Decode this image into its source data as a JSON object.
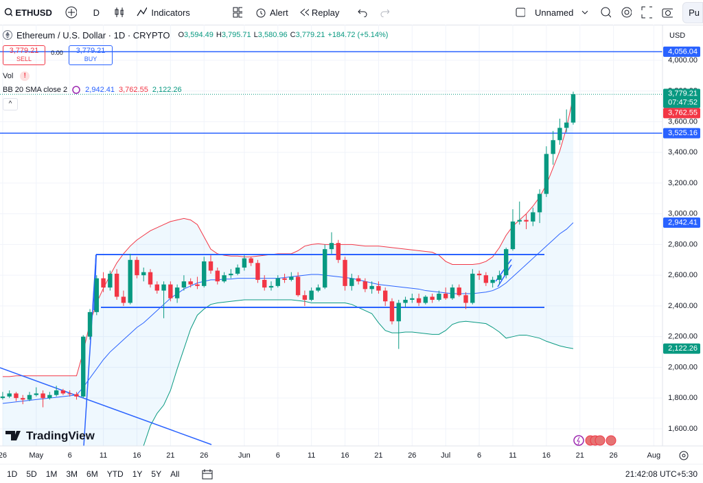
{
  "toolbar": {
    "symbol": "ETHUSD",
    "interval": "D",
    "indicators": "Indicators",
    "alert": "Alert",
    "replay": "Replay",
    "layout": "Unnamed",
    "publish": "Pu"
  },
  "legend": {
    "title": "Ethereum / U.S. Dollar · 1D · CRYPTO",
    "ohlc": [
      {
        "key": "O",
        "value": "3,594.49"
      },
      {
        "key": "H",
        "value": "3,795.71"
      },
      {
        "key": "L",
        "value": "3,580.96"
      },
      {
        "key": "C",
        "value": "3,779.21"
      }
    ],
    "change": "+184.72 (+5.14%)",
    "sell": {
      "price": "3,779.21",
      "label": "SELL"
    },
    "spread": "0.00",
    "buy": {
      "price": "3,779.21",
      "label": "BUY"
    },
    "vol": "Vol",
    "bb": {
      "label": "BB 20 SMA close 2",
      "values": [
        "2,942.41",
        "3,762.55",
        "2,122.26"
      ]
    }
  },
  "currency": "USD",
  "watermark": "TradingView",
  "bottom_bar": {
    "ranges": [
      "1D",
      "5D",
      "1M",
      "3M",
      "6M",
      "YTD",
      "1Y",
      "5Y",
      "All"
    ],
    "clock": "21:42:08 UTC+5:30"
  },
  "chart_data": {
    "type": "candlestick",
    "up_color": "#089981",
    "down_color": "#f23645",
    "xlim": [
      -0.4,
      98.3
    ],
    "ylim": [
      1488,
      4232
    ],
    "xticks": [
      {
        "value": 0,
        "label": "26"
      },
      {
        "value": 5,
        "label": "May"
      },
      {
        "value": 10,
        "label": "6"
      },
      {
        "value": 15,
        "label": "11"
      },
      {
        "value": 20,
        "label": "16"
      },
      {
        "value": 25,
        "label": "21"
      },
      {
        "value": 30,
        "label": "26"
      },
      {
        "value": 36,
        "label": "Jun"
      },
      {
        "value": 41,
        "label": "6"
      },
      {
        "value": 46,
        "label": "11"
      },
      {
        "value": 51,
        "label": "16"
      },
      {
        "value": 56,
        "label": "21"
      },
      {
        "value": 61,
        "label": "26"
      },
      {
        "value": 66,
        "label": "Jul"
      },
      {
        "value": 71,
        "label": "6"
      },
      {
        "value": 76,
        "label": "11"
      },
      {
        "value": 81,
        "label": "16"
      },
      {
        "value": 86,
        "label": "21"
      },
      {
        "value": 91,
        "label": "26"
      },
      {
        "value": 97,
        "label": "Aug"
      }
    ],
    "yticks": [
      {
        "value": 1600,
        "label": "1,600.00"
      },
      {
        "value": 1800,
        "label": "1,800.00"
      },
      {
        "value": 2000,
        "label": "2,000.00"
      },
      {
        "value": 2200,
        "label": "2,200.00"
      },
      {
        "value": 2400,
        "label": "2,400.00"
      },
      {
        "value": 2600,
        "label": "2,600.00"
      },
      {
        "value": 2800,
        "label": "2,800.00"
      },
      {
        "value": 3000,
        "label": "3,000.00"
      },
      {
        "value": 3200,
        "label": "3,200.00"
      },
      {
        "value": 3400,
        "label": "3,400.00"
      },
      {
        "value": 3600,
        "label": "3,600.00"
      },
      {
        "value": 3800,
        "label": "3,800.00"
      },
      {
        "value": 4000,
        "label": "4,000.00"
      }
    ],
    "candles": [
      [
        1800,
        1840,
        1790,
        1810
      ],
      [
        1810,
        1850,
        1800,
        1830
      ],
      [
        1830,
        1840,
        1780,
        1800
      ],
      [
        1800,
        1820,
        1760,
        1790
      ],
      [
        1790,
        1840,
        1780,
        1820
      ],
      [
        1820,
        1870,
        1810,
        1830
      ],
      [
        1830,
        1850,
        1740,
        1800
      ],
      [
        1800,
        1840,
        1790,
        1820
      ],
      [
        1820,
        1880,
        1810,
        1850
      ],
      [
        1850,
        1860,
        1820,
        1830
      ],
      [
        1830,
        1850,
        1810,
        1825
      ],
      [
        1825,
        1840,
        1790,
        1810
      ],
      [
        1810,
        2210,
        1800,
        2200
      ],
      [
        2200,
        2380,
        2180,
        2360
      ],
      [
        2360,
        2600,
        2340,
        2580
      ],
      [
        2580,
        2620,
        2490,
        2520
      ],
      [
        2520,
        2630,
        2500,
        2610
      ],
      [
        2610,
        2640,
        2440,
        2460
      ],
      [
        2460,
        2500,
        2400,
        2420
      ],
      [
        2420,
        2740,
        2410,
        2700
      ],
      [
        2700,
        2720,
        2580,
        2600
      ],
      [
        2600,
        2650,
        2560,
        2620
      ],
      [
        2620,
        2640,
        2520,
        2540
      ],
      [
        2540,
        2560,
        2480,
        2500
      ],
      [
        2500,
        2560,
        2320,
        2540
      ],
      [
        2540,
        2560,
        2430,
        2450
      ],
      [
        2450,
        2540,
        2420,
        2520
      ],
      [
        2520,
        2600,
        2500,
        2560
      ],
      [
        2560,
        2580,
        2520,
        2540
      ],
      [
        2540,
        2590,
        2510,
        2530
      ],
      [
        2530,
        2720,
        2520,
        2690
      ],
      [
        2690,
        2730,
        2610,
        2630
      ],
      [
        2630,
        2650,
        2540,
        2560
      ],
      [
        2560,
        2620,
        2550,
        2600
      ],
      [
        2600,
        2640,
        2580,
        2610
      ],
      [
        2610,
        2670,
        2600,
        2650
      ],
      [
        2650,
        2730,
        2630,
        2710
      ],
      [
        2710,
        2720,
        2660,
        2680
      ],
      [
        2680,
        2700,
        2550,
        2570
      ],
      [
        2570,
        2600,
        2500,
        2520
      ],
      [
        2520,
        2560,
        2500,
        2530
      ],
      [
        2530,
        2600,
        2520,
        2580
      ],
      [
        2580,
        2610,
        2550,
        2570
      ],
      [
        2570,
        2620,
        2560,
        2590
      ],
      [
        2590,
        2620,
        2460,
        2470
      ],
      [
        2470,
        2500,
        2400,
        2440
      ],
      [
        2440,
        2520,
        2430,
        2500
      ],
      [
        2500,
        2540,
        2490,
        2520
      ],
      [
        2520,
        2800,
        2510,
        2770
      ],
      [
        2770,
        2880,
        2740,
        2810
      ],
      [
        2810,
        2830,
        2680,
        2700
      ],
      [
        2700,
        2720,
        2500,
        2530
      ],
      [
        2530,
        2610,
        2500,
        2580
      ],
      [
        2580,
        2600,
        2540,
        2560
      ],
      [
        2560,
        2580,
        2490,
        2510
      ],
      [
        2510,
        2560,
        2480,
        2530
      ],
      [
        2530,
        2560,
        2480,
        2500
      ],
      [
        2500,
        2520,
        2400,
        2430
      ],
      [
        2430,
        2450,
        2280,
        2300
      ],
      [
        2300,
        2440,
        2120,
        2420
      ],
      [
        2420,
        2460,
        2390,
        2440
      ],
      [
        2440,
        2480,
        2420,
        2450
      ],
      [
        2450,
        2480,
        2400,
        2420
      ],
      [
        2420,
        2470,
        2410,
        2460
      ],
      [
        2460,
        2480,
        2420,
        2440
      ],
      [
        2440,
        2500,
        2430,
        2480
      ],
      [
        2480,
        2520,
        2440,
        2450
      ],
      [
        2450,
        2540,
        2440,
        2520
      ],
      [
        2520,
        2540,
        2460,
        2470
      ],
      [
        2470,
        2490,
        2380,
        2420
      ],
      [
        2420,
        2640,
        2410,
        2610
      ],
      [
        2610,
        2630,
        2570,
        2600
      ],
      [
        2600,
        2620,
        2530,
        2550
      ],
      [
        2550,
        2590,
        2520,
        2570
      ],
      [
        2570,
        2630,
        2540,
        2600
      ],
      [
        2600,
        2780,
        2580,
        2770
      ],
      [
        2770,
        3030,
        2760,
        2950
      ],
      [
        2950,
        3080,
        2930,
        2960
      ],
      [
        2960,
        3000,
        2900,
        2950
      ],
      [
        2950,
        3040,
        2920,
        3010
      ],
      [
        3010,
        3160,
        2940,
        3130
      ],
      [
        3130,
        3440,
        3110,
        3390
      ],
      [
        3390,
        3540,
        3320,
        3480
      ],
      [
        3480,
        3620,
        3450,
        3560
      ],
      [
        3560,
        3680,
        3530,
        3594.49
      ],
      [
        3594.49,
        3795.71,
        3580.96,
        3779.21
      ]
    ],
    "bollinger": {
      "upper_color": "#f23645",
      "basis_color": "#2962ff",
      "lower_color": "#089981",
      "upper": [
        1940,
        1940,
        1945,
        1945,
        1945,
        1945,
        1945,
        1945,
        1945,
        1945,
        1945,
        1945,
        2100,
        2290,
        2420,
        2515,
        2600,
        2680,
        2740,
        2790,
        2830,
        2860,
        2890,
        2910,
        2930,
        2950,
        2960,
        2970,
        2960,
        2930,
        2850,
        2770,
        2740,
        2730,
        2725,
        2725,
        2720,
        2720,
        2725,
        2730,
        2735,
        2740,
        2740,
        2740,
        2760,
        2790,
        2800,
        2805,
        2800,
        2800,
        2800,
        2800,
        2800,
        2795,
        2790,
        2790,
        2790,
        2785,
        2780,
        2775,
        2770,
        2765,
        2760,
        2755,
        2750,
        2730,
        2690,
        2670,
        2670,
        2670,
        2670,
        2675,
        2690,
        2720,
        2780,
        2860,
        2920,
        2960,
        3000,
        3050,
        3110,
        3190,
        3300,
        3410,
        3560,
        3762.55
      ],
      "basis": [
        1765,
        1770,
        1775,
        1780,
        1785,
        1790,
        1795,
        1800,
        1805,
        1810,
        1815,
        1820,
        1870,
        1930,
        1990,
        2050,
        2100,
        2140,
        2180,
        2220,
        2260,
        2290,
        2330,
        2370,
        2410,
        2450,
        2480,
        2510,
        2530,
        2550,
        2560,
        2570,
        2570,
        2575,
        2575,
        2580,
        2580,
        2580,
        2580,
        2580,
        2580,
        2580,
        2585,
        2590,
        2595,
        2600,
        2605,
        2605,
        2600,
        2595,
        2590,
        2585,
        2580,
        2570,
        2560,
        2550,
        2540,
        2535,
        2530,
        2525,
        2520,
        2515,
        2510,
        2500,
        2495,
        2490,
        2485,
        2480,
        2480,
        2480,
        2480,
        2485,
        2490,
        2500,
        2520,
        2550,
        2590,
        2630,
        2670,
        2710,
        2750,
        2790,
        2830,
        2870,
        2900,
        2942.41
      ],
      "lower": [
        1470,
        1470,
        1470,
        1470,
        1470,
        1470,
        1470,
        1470,
        1470,
        1470,
        1470,
        1470,
        1400,
        1320,
        1300,
        1300,
        1320,
        1350,
        1380,
        1420,
        1450,
        1490,
        1620,
        1700,
        1755,
        1850,
        1990,
        2120,
        2250,
        2340,
        2380,
        2410,
        2420,
        2425,
        2430,
        2435,
        2440,
        2440,
        2440,
        2440,
        2440,
        2440,
        2440,
        2440,
        2435,
        2430,
        2420,
        2420,
        2420,
        2420,
        2420,
        2420,
        2410,
        2390,
        2370,
        2350,
        2290,
        2240,
        2225,
        2225,
        2230,
        2230,
        2225,
        2220,
        2215,
        2215,
        2240,
        2280,
        2295,
        2300,
        2295,
        2290,
        2285,
        2260,
        2230,
        2190,
        2200,
        2210,
        2210,
        2200,
        2190,
        2170,
        2155,
        2140,
        2130,
        2122.26
      ]
    },
    "hlines": [
      {
        "value": 4056.04,
        "label": "4,056.04",
        "color": "#2962ff"
      },
      {
        "value": 3525.16,
        "label": "3,525.16",
        "color": "#2962ff"
      }
    ],
    "last_price": {
      "value": 3779.21,
      "label": "3,779.21",
      "countdown": "07:47:52",
      "color": "#089981"
    },
    "price_tags": [
      {
        "value": 3762.55,
        "label": "3,762.55",
        "color": "#f23645"
      },
      {
        "value": 2942.41,
        "label": "2,942.41",
        "color": "#2962ff"
      },
      {
        "value": 2122.26,
        "label": "2,122.26",
        "color": "#089981"
      }
    ]
  }
}
